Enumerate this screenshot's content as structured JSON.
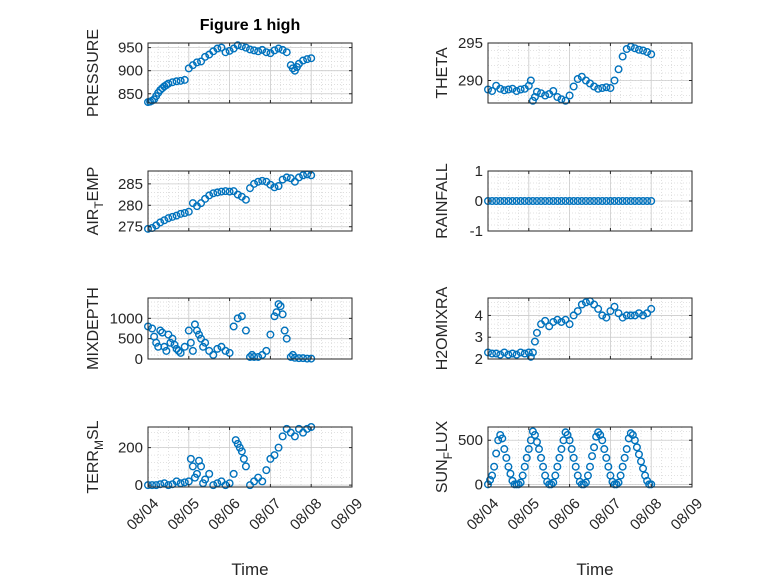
{
  "figure": {
    "title": "Figure 1 high",
    "xlabel": "Time",
    "marker_color": "#0072BD",
    "grid_color": "#d9d9d9",
    "axis_color": "#262626"
  },
  "chart_data": [
    {
      "type": "scatter",
      "ylabel": "PRESSURE",
      "xlim": [
        0,
        5
      ],
      "ylim": [
        830,
        960
      ],
      "yticks": [
        850,
        900,
        950
      ],
      "ytick_labels": [
        "850",
        "900",
        "950"
      ],
      "x": [
        0.0,
        0.05,
        0.1,
        0.15,
        0.2,
        0.25,
        0.3,
        0.35,
        0.4,
        0.45,
        0.5,
        0.6,
        0.7,
        0.8,
        0.9,
        1.0,
        1.1,
        1.2,
        1.3,
        1.4,
        1.5,
        1.6,
        1.7,
        1.8,
        1.9,
        2.0,
        2.1,
        2.2,
        2.3,
        2.4,
        2.5,
        2.6,
        2.7,
        2.8,
        2.9,
        3.0,
        3.1,
        3.2,
        3.3,
        3.4,
        3.5,
        3.55,
        3.6,
        3.65,
        3.7,
        3.8,
        3.9,
        4.0
      ],
      "y": [
        832,
        833,
        835,
        838,
        845,
        852,
        858,
        862,
        866,
        869,
        872,
        875,
        877,
        878,
        880,
        905,
        912,
        918,
        920,
        930,
        935,
        942,
        948,
        950,
        940,
        943,
        948,
        955,
        953,
        950,
        946,
        944,
        942,
        945,
        940,
        938,
        944,
        948,
        945,
        940,
        912,
        905,
        900,
        908,
        915,
        922,
        925,
        927
      ]
    },
    {
      "type": "scatter",
      "ylabel": "THETA",
      "xlim": [
        0,
        5
      ],
      "ylim": [
        287,
        295
      ],
      "yticks": [
        290,
        295
      ],
      "ytick_labels": [
        "290",
        "295"
      ],
      "x": [
        0.0,
        0.1,
        0.2,
        0.3,
        0.4,
        0.5,
        0.6,
        0.7,
        0.8,
        0.9,
        1.0,
        1.05,
        1.1,
        1.15,
        1.2,
        1.3,
        1.4,
        1.5,
        1.6,
        1.7,
        1.8,
        1.9,
        2.0,
        2.1,
        2.2,
        2.3,
        2.4,
        2.5,
        2.6,
        2.7,
        2.8,
        2.9,
        3.0,
        3.1,
        3.2,
        3.3,
        3.4,
        3.5,
        3.6,
        3.7,
        3.8,
        3.9,
        4.0
      ],
      "y": [
        288.8,
        288.6,
        289.3,
        288.9,
        288.7,
        288.8,
        288.9,
        288.6,
        288.8,
        288.9,
        289.3,
        290.0,
        287.3,
        287.8,
        288.5,
        288.3,
        288.0,
        288.2,
        288.6,
        287.8,
        287.5,
        287.3,
        288.0,
        289.2,
        290.2,
        290.5,
        290.0,
        289.6,
        289.2,
        288.9,
        289.0,
        289.1,
        289.0,
        290.0,
        291.5,
        293.2,
        294.2,
        294.5,
        294.3,
        294.1,
        294.0,
        293.8,
        293.5
      ]
    },
    {
      "type": "scatter",
      "ylabel": "AIR_TEMP",
      "xlim": [
        0,
        5
      ],
      "ylim": [
        274,
        288
      ],
      "yticks": [
        275,
        280,
        285
      ],
      "ytick_labels": [
        "275",
        "280",
        "285"
      ],
      "x": [
        0.0,
        0.1,
        0.2,
        0.3,
        0.4,
        0.5,
        0.6,
        0.7,
        0.8,
        0.9,
        1.0,
        1.1,
        1.2,
        1.3,
        1.4,
        1.5,
        1.6,
        1.7,
        1.8,
        1.9,
        2.0,
        2.1,
        2.2,
        2.3,
        2.4,
        2.5,
        2.6,
        2.7,
        2.8,
        2.9,
        3.0,
        3.1,
        3.2,
        3.3,
        3.4,
        3.5,
        3.6,
        3.7,
        3.8,
        3.9,
        4.0
      ],
      "y": [
        274.5,
        274.7,
        275.3,
        276.0,
        276.5,
        277.0,
        277.3,
        277.6,
        278.0,
        278.2,
        278.5,
        280.5,
        279.8,
        280.5,
        281.5,
        282.3,
        282.8,
        283.0,
        283.2,
        283.3,
        283.2,
        283.3,
        282.5,
        282.0,
        281.3,
        284.0,
        285.0,
        285.5,
        285.7,
        285.5,
        284.8,
        284.2,
        284.5,
        286.0,
        286.5,
        286.3,
        285.5,
        286.5,
        287.0,
        287.2,
        287.0
      ]
    },
    {
      "type": "scatter",
      "ylabel": "RAINFALL",
      "xlim": [
        0,
        5
      ],
      "ylim": [
        -1,
        1
      ],
      "yticks": [
        -1,
        0,
        1
      ],
      "ytick_labels": [
        "-1",
        "0",
        "1"
      ],
      "x": [
        0.0,
        0.1,
        0.2,
        0.3,
        0.4,
        0.5,
        0.6,
        0.7,
        0.8,
        0.9,
        1.0,
        1.1,
        1.2,
        1.3,
        1.4,
        1.5,
        1.6,
        1.7,
        1.8,
        1.9,
        2.0,
        2.1,
        2.2,
        2.3,
        2.4,
        2.5,
        2.6,
        2.7,
        2.8,
        2.9,
        3.0,
        3.1,
        3.2,
        3.3,
        3.4,
        3.5,
        3.6,
        3.7,
        3.8,
        3.9,
        4.0
      ],
      "y": [
        0,
        0,
        0,
        0,
        0,
        0,
        0,
        0,
        0,
        0,
        0,
        0,
        0,
        0,
        0,
        0,
        0,
        0,
        0,
        0,
        0,
        0,
        0,
        0,
        0,
        0,
        0,
        0,
        0,
        0,
        0,
        0,
        0,
        0,
        0,
        0,
        0,
        0,
        0,
        0,
        0
      ]
    },
    {
      "type": "scatter",
      "ylabel": "MIXDEPTH",
      "xlim": [
        0,
        5
      ],
      "ylim": [
        0,
        1500
      ],
      "yticks": [
        0,
        500,
        1000
      ],
      "ytick_labels": [
        "0",
        "500",
        "1000"
      ],
      "x": [
        0.0,
        0.1,
        0.15,
        0.2,
        0.25,
        0.3,
        0.35,
        0.4,
        0.45,
        0.5,
        0.55,
        0.6,
        0.65,
        0.7,
        0.75,
        0.8,
        0.9,
        1.0,
        1.05,
        1.1,
        1.15,
        1.2,
        1.25,
        1.3,
        1.35,
        1.4,
        1.5,
        1.6,
        1.7,
        1.8,
        1.9,
        2.0,
        2.1,
        2.2,
        2.3,
        2.4,
        2.5,
        2.55,
        2.6,
        2.7,
        2.8,
        2.9,
        3.0,
        3.1,
        3.15,
        3.2,
        3.25,
        3.3,
        3.35,
        3.4,
        3.5,
        3.55,
        3.6,
        3.7,
        3.8,
        3.9,
        4.0
      ],
      "y": [
        800,
        750,
        550,
        400,
        300,
        700,
        650,
        300,
        200,
        600,
        400,
        500,
        350,
        250,
        200,
        150,
        300,
        700,
        400,
        200,
        850,
        700,
        600,
        500,
        300,
        400,
        200,
        100,
        250,
        300,
        200,
        150,
        800,
        1000,
        1050,
        700,
        50,
        100,
        50,
        50,
        100,
        200,
        600,
        1050,
        1150,
        1350,
        1300,
        1100,
        700,
        500,
        50,
        100,
        30,
        20,
        20,
        10,
        10
      ]
    },
    {
      "type": "scatter",
      "ylabel": "H2OMIXRA",
      "xlim": [
        0,
        5
      ],
      "ylim": [
        2,
        4.8
      ],
      "yticks": [
        2,
        3,
        4
      ],
      "ytick_labels": [
        "2",
        "3",
        "4"
      ],
      "x": [
        0.0,
        0.1,
        0.2,
        0.3,
        0.4,
        0.5,
        0.6,
        0.7,
        0.8,
        0.9,
        1.0,
        1.05,
        1.1,
        1.15,
        1.2,
        1.3,
        1.4,
        1.5,
        1.6,
        1.7,
        1.8,
        1.9,
        2.0,
        2.1,
        2.2,
        2.3,
        2.4,
        2.5,
        2.6,
        2.7,
        2.8,
        2.9,
        3.0,
        3.1,
        3.2,
        3.3,
        3.4,
        3.5,
        3.6,
        3.7,
        3.8,
        3.9,
        4.0
      ],
      "y": [
        2.3,
        2.25,
        2.25,
        2.2,
        2.3,
        2.2,
        2.25,
        2.2,
        2.3,
        2.25,
        2.3,
        2.1,
        2.3,
        2.8,
        3.2,
        3.6,
        3.75,
        3.5,
        3.7,
        3.8,
        3.7,
        3.8,
        3.6,
        4.0,
        4.2,
        4.5,
        4.6,
        4.65,
        4.5,
        4.3,
        4.0,
        3.9,
        4.2,
        4.4,
        4.1,
        3.9,
        4.0,
        4.0,
        4.0,
        4.1,
        4.0,
        4.1,
        4.3
      ]
    },
    {
      "type": "scatter",
      "ylabel": "TERR_MSL",
      "xlim": [
        0,
        5
      ],
      "ylim": [
        -10,
        310
      ],
      "yticks": [
        0,
        200
      ],
      "ytick_labels": [
        "0",
        "200"
      ],
      "x": [
        0.0,
        0.1,
        0.2,
        0.3,
        0.4,
        0.5,
        0.6,
        0.7,
        0.8,
        0.9,
        1.0,
        1.05,
        1.1,
        1.15,
        1.2,
        1.25,
        1.3,
        1.35,
        1.4,
        1.5,
        1.6,
        1.7,
        1.8,
        1.9,
        2.0,
        2.1,
        2.15,
        2.2,
        2.25,
        2.3,
        2.35,
        2.4,
        2.5,
        2.6,
        2.7,
        2.8,
        2.9,
        3.0,
        3.1,
        3.2,
        3.3,
        3.4,
        3.5,
        3.6,
        3.7,
        3.8,
        3.9,
        4.0
      ],
      "y": [
        0,
        0,
        0,
        5,
        10,
        0,
        5,
        20,
        10,
        15,
        20,
        140,
        100,
        40,
        60,
        130,
        100,
        10,
        30,
        60,
        0,
        10,
        20,
        0,
        10,
        60,
        240,
        220,
        200,
        180,
        140,
        100,
        0,
        20,
        40,
        20,
        80,
        140,
        160,
        200,
        260,
        300,
        280,
        260,
        300,
        280,
        300,
        310
      ]
    },
    {
      "type": "scatter",
      "ylabel": "SUN_FLUX",
      "xlim": [
        0,
        5
      ],
      "ylim": [
        -30,
        650
      ],
      "yticks": [
        0,
        500
      ],
      "ytick_labels": [
        "0",
        "500"
      ],
      "x": [
        0.0,
        0.05,
        0.1,
        0.15,
        0.2,
        0.25,
        0.3,
        0.35,
        0.4,
        0.45,
        0.5,
        0.55,
        0.6,
        0.65,
        0.7,
        0.75,
        0.8,
        0.85,
        0.9,
        0.95,
        1.0,
        1.05,
        1.1,
        1.15,
        1.2,
        1.25,
        1.3,
        1.35,
        1.4,
        1.45,
        1.5,
        1.55,
        1.6,
        1.65,
        1.7,
        1.75,
        1.8,
        1.85,
        1.9,
        1.95,
        2.0,
        2.05,
        2.1,
        2.15,
        2.2,
        2.25,
        2.3,
        2.35,
        2.4,
        2.45,
        2.5,
        2.55,
        2.6,
        2.65,
        2.7,
        2.75,
        2.8,
        2.85,
        2.9,
        2.95,
        3.0,
        3.05,
        3.1,
        3.15,
        3.2,
        3.25,
        3.3,
        3.35,
        3.4,
        3.45,
        3.5,
        3.55,
        3.6,
        3.65,
        3.7,
        3.75,
        3.8,
        3.85,
        3.9,
        3.95,
        4.0
      ],
      "y": [
        0,
        50,
        100,
        200,
        350,
        500,
        560,
        520,
        400,
        300,
        200,
        120,
        40,
        0,
        0,
        0,
        20,
        100,
        200,
        300,
        400,
        500,
        600,
        560,
        480,
        400,
        300,
        200,
        100,
        30,
        0,
        0,
        20,
        100,
        200,
        300,
        400,
        500,
        590,
        560,
        500,
        400,
        300,
        200,
        100,
        30,
        0,
        0,
        20,
        100,
        200,
        320,
        420,
        540,
        590,
        560,
        500,
        400,
        300,
        200,
        100,
        30,
        0,
        0,
        20,
        100,
        200,
        300,
        400,
        520,
        580,
        560,
        500,
        420,
        340,
        260,
        180,
        100,
        40,
        0,
        0
      ]
    }
  ],
  "shared_x": {
    "tick_values": [
      0,
      1,
      2,
      3,
      4,
      5
    ],
    "tick_labels": [
      "08/04",
      "08/05",
      "08/06",
      "08/07",
      "08/08",
      "08/09"
    ]
  }
}
